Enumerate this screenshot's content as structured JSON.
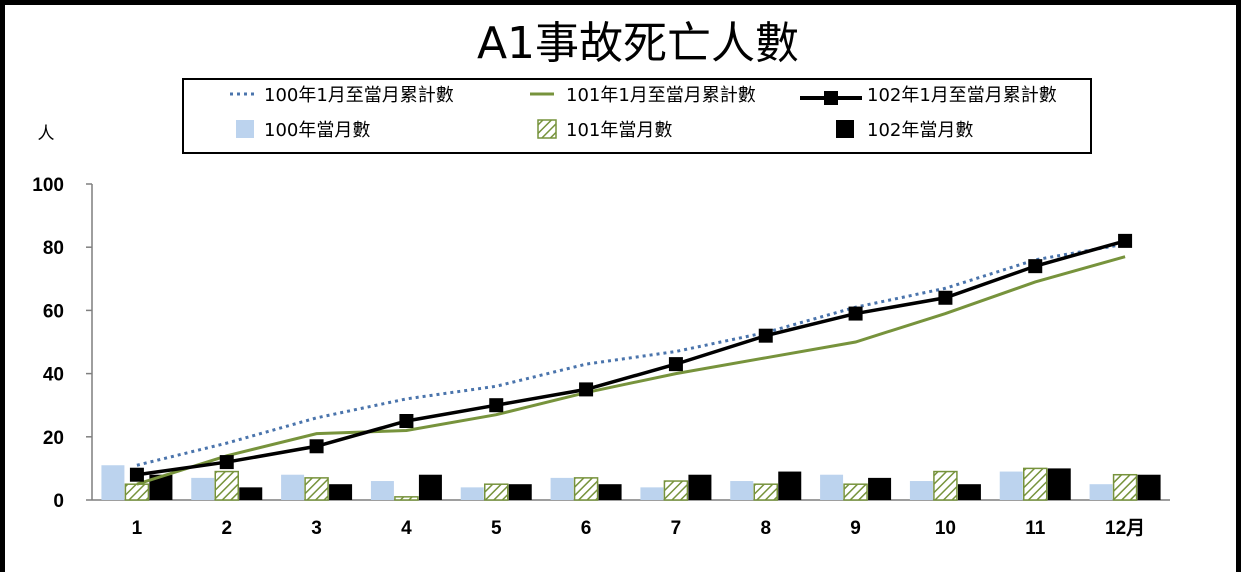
{
  "chart_data": {
    "type": "bar",
    "title": "A1事故死亡人數",
    "ylabel": "人",
    "ylim": [
      0,
      100
    ],
    "yticks": [
      0,
      20,
      40,
      60,
      80,
      100
    ],
    "categories": [
      "1",
      "2",
      "3",
      "4",
      "5",
      "6",
      "7",
      "8",
      "9",
      "10",
      "11",
      "12月"
    ],
    "bar_series": [
      {
        "name": "100年當月數",
        "pattern": "solid",
        "color": "#bcd3ee",
        "values": [
          11,
          7,
          8,
          6,
          4,
          7,
          4,
          6,
          8,
          6,
          9,
          5
        ]
      },
      {
        "name": "101年當月數",
        "pattern": "hatch",
        "color": "#77933c",
        "values": [
          5,
          9,
          7,
          1,
          5,
          7,
          6,
          5,
          5,
          9,
          10,
          8
        ]
      },
      {
        "name": "102年當月數",
        "pattern": "solid",
        "color": "#000000",
        "values": [
          8,
          4,
          5,
          8,
          5,
          5,
          8,
          9,
          7,
          5,
          10,
          8
        ]
      }
    ],
    "line_series": [
      {
        "name": "100年1月至當月累計數",
        "style": "dotted",
        "color": "#4a74ac",
        "values": [
          11,
          18,
          26,
          32,
          36,
          43,
          47,
          53,
          61,
          67,
          76,
          81
        ]
      },
      {
        "name": "101年1月至當月累計數",
        "style": "solid",
        "color": "#77933c",
        "values": [
          5,
          14,
          21,
          22,
          27,
          34,
          40,
          45,
          50,
          59,
          69,
          77
        ]
      },
      {
        "name": "102年1月至當月累計數",
        "style": "marker",
        "color": "#000000",
        "values": [
          8,
          12,
          17,
          25,
          30,
          35,
          43,
          52,
          59,
          64,
          74,
          82
        ]
      }
    ],
    "grid": false,
    "legend": "top"
  }
}
